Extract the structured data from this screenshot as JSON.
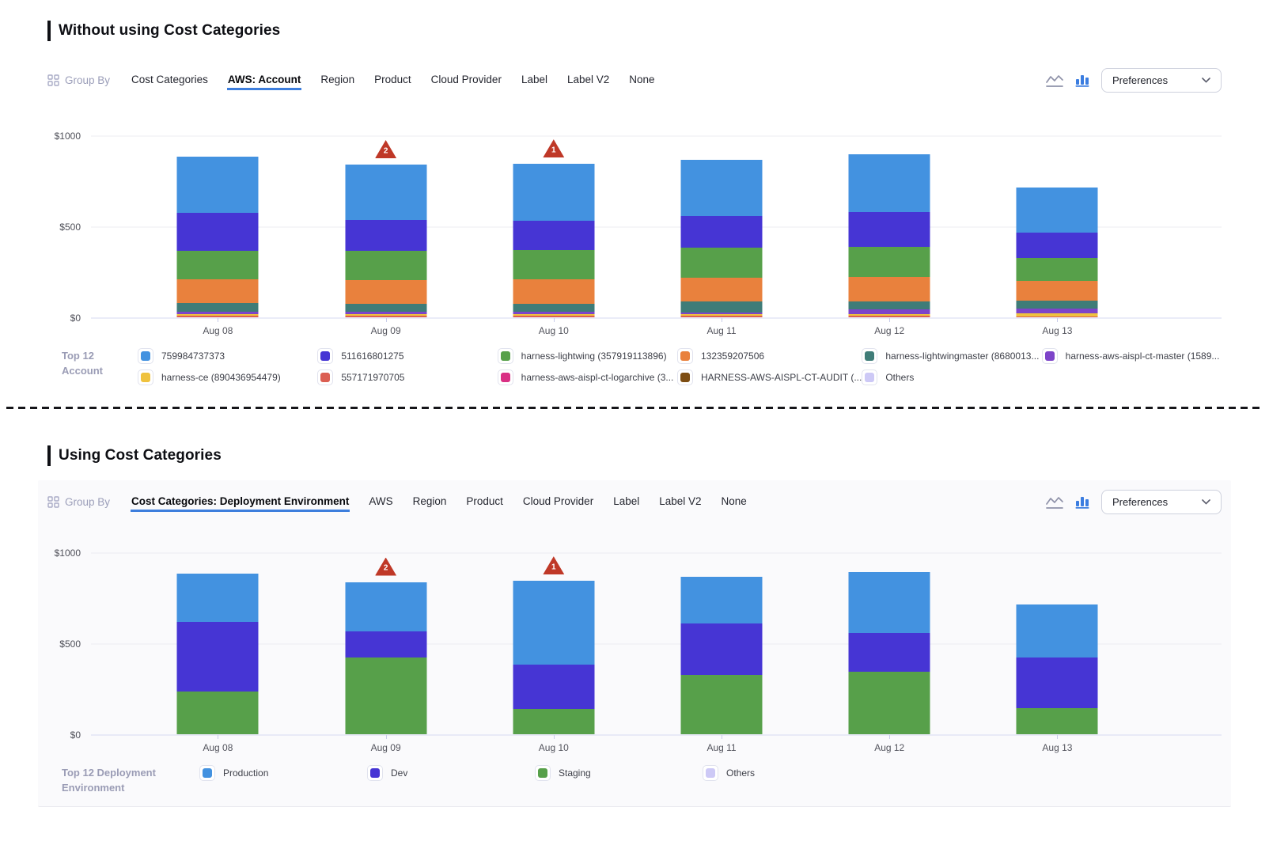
{
  "sections": [
    {
      "title": "Without using Cost Categories",
      "toolbar": {
        "group_by_label": "Group By",
        "tabs": [
          {
            "label": "Cost Categories",
            "active": false
          },
          {
            "label": "AWS: Account",
            "active": true
          },
          {
            "label": "Region",
            "active": false
          },
          {
            "label": "Product",
            "active": false
          },
          {
            "label": "Cloud Provider",
            "active": false
          },
          {
            "label": "Label",
            "active": false
          },
          {
            "label": "Label V2",
            "active": false
          },
          {
            "label": "None",
            "active": false
          }
        ],
        "view_icons": [
          "line-chart-icon",
          "bar-chart-icon"
        ],
        "active_view": "bar",
        "preferences_label": "Preferences"
      },
      "chart_data": {
        "type": "bar",
        "stacked": true,
        "title": "Daily AWS cost grouped by account",
        "categories": [
          "Aug 08",
          "Aug 09",
          "Aug 10",
          "Aug 11",
          "Aug 12",
          "Aug 13"
        ],
        "ylim": [
          0,
          1000
        ],
        "yticks": [
          {
            "value": 0,
            "label": "$0"
          },
          {
            "value": 500,
            "label": "$500"
          },
          {
            "value": 1000,
            "label": "$1000"
          }
        ],
        "grid": true,
        "series": [
          {
            "name": "Others",
            "color": "#CDC9F6",
            "values": [
              0,
              0,
              0,
              0,
              0,
              0
            ]
          },
          {
            "name": "HARNESS-AWS-AISPL-CT-AUDIT (...",
            "color": "#7D4D12",
            "values": [
              0,
              0,
              0,
              0,
              0,
              0
            ]
          },
          {
            "name": "harness-aws-aispl-ct-logarchive (3...",
            "color": "#D93084",
            "values": [
              0,
              0,
              0,
              0,
              0,
              0
            ]
          },
          {
            "name": "557171970705",
            "color": "#DB5E52",
            "values": [
              8,
              8,
              8,
              8,
              8,
              6
            ]
          },
          {
            "name": "harness-ce (890436954479)",
            "color": "#EFC23E",
            "values": [
              8,
              10,
              9,
              8,
              8,
              16
            ]
          },
          {
            "name": "harness-aws-aispl-ct-master (1589...",
            "color": "#7D44C9",
            "values": [
              16,
              14,
              15,
              12,
              29,
              25
            ]
          },
          {
            "name": "harness-lightwingmaster (8680013...",
            "color": "#3F7C78",
            "values": [
              46,
              43,
              44,
              58,
              42,
              44
            ]
          },
          {
            "name": "132359207506",
            "color": "#E9813D",
            "values": [
              130,
              130,
              133,
              131,
              137,
              111
            ]
          },
          {
            "name": "harness-lightwing (357919113896)",
            "color": "#57A04A",
            "values": [
              159,
              159,
              160,
              165,
              163,
              125
            ]
          },
          {
            "name": "511616801275",
            "color": "#4635D4",
            "values": [
              206,
              170,
              162,
              173,
              191,
              140
            ]
          },
          {
            "name": "759984737373",
            "color": "#4392E0",
            "values": [
              310,
              305,
              312,
              310,
              319,
              248
            ]
          }
        ],
        "annotations": [
          {
            "category": "Aug 09",
            "badge": "2"
          },
          {
            "category": "Aug 10",
            "badge": "1"
          }
        ]
      },
      "legend": {
        "title": "Top 12 Account",
        "items": [
          {
            "label": "759984737373",
            "color": "#4392E0"
          },
          {
            "label": "511616801275",
            "color": "#4635D4"
          },
          {
            "label": "harness-lightwing (357919113896)",
            "color": "#57A04A"
          },
          {
            "label": "132359207506",
            "color": "#E9813D"
          },
          {
            "label": "harness-lightwingmaster (8680013...",
            "color": "#3F7C78"
          },
          {
            "label": "harness-aws-aispl-ct-master (1589...",
            "color": "#7D44C9"
          },
          {
            "label": "harness-ce (890436954479)",
            "color": "#EFC23E"
          },
          {
            "label": "557171970705",
            "color": "#DB5E52"
          },
          {
            "label": "harness-aws-aispl-ct-logarchive (3...",
            "color": "#D93084"
          },
          {
            "label": "HARNESS-AWS-AISPL-CT-AUDIT (...",
            "color": "#7D4D12"
          },
          {
            "label": "Others",
            "color": "#CDC9F6"
          }
        ]
      }
    },
    {
      "title": "Using Cost Categories",
      "toolbar": {
        "group_by_label": "Group By",
        "tabs": [
          {
            "label": "Cost Categories: Deployment Environment",
            "active": true
          },
          {
            "label": "AWS",
            "active": false
          },
          {
            "label": "Region",
            "active": false
          },
          {
            "label": "Product",
            "active": false
          },
          {
            "label": "Cloud Provider",
            "active": false
          },
          {
            "label": "Label",
            "active": false
          },
          {
            "label": "Label V2",
            "active": false
          },
          {
            "label": "None",
            "active": false
          }
        ],
        "view_icons": [
          "line-chart-icon",
          "bar-chart-icon"
        ],
        "active_view": "bar",
        "preferences_label": "Preferences"
      },
      "chart_data": {
        "type": "bar",
        "stacked": true,
        "title": "Daily AWS cost grouped by deployment environment cost category",
        "categories": [
          "Aug 08",
          "Aug 09",
          "Aug 10",
          "Aug 11",
          "Aug 12",
          "Aug 13"
        ],
        "ylim": [
          0,
          1000
        ],
        "yticks": [
          {
            "value": 0,
            "label": "$0"
          },
          {
            "value": 500,
            "label": "$500"
          },
          {
            "value": 1000,
            "label": "$1000"
          }
        ],
        "grid": true,
        "series": [
          {
            "name": "Staging",
            "color": "#57A04A",
            "values": [
              234,
              420,
              141,
              324,
              345,
              145
            ]
          },
          {
            "name": "Dev",
            "color": "#4635D4",
            "values": [
              385,
              144,
              240,
              284,
              210,
              275
            ]
          },
          {
            "name": "Production",
            "color": "#4392E0",
            "values": [
              265,
              273,
              462,
              258,
              335,
              292
            ]
          }
        ],
        "annotations": [
          {
            "category": "Aug 09",
            "badge": "2"
          },
          {
            "category": "Aug 10",
            "badge": "1"
          }
        ]
      },
      "legend": {
        "title": "Top 12 Deployment Environment",
        "items": [
          {
            "label": "Production",
            "color": "#4392E0"
          },
          {
            "label": "Dev",
            "color": "#4635D4"
          },
          {
            "label": "Staging",
            "color": "#57A04A"
          },
          {
            "label": "Others",
            "color": "#CDC9F6"
          }
        ]
      }
    }
  ],
  "colors": {
    "accent_blue": "#3d7edd",
    "warning_red": "#bf3827",
    "muted_text": "#9b9eb9",
    "axis_text": "#53545d"
  },
  "icons": {
    "group_by": "grid-icon",
    "line_view": "line-chart-icon",
    "bar_view": "bar-chart-icon",
    "preferences_chevron": "chevron-down-icon",
    "anomaly": "warning-triangle-icon"
  }
}
